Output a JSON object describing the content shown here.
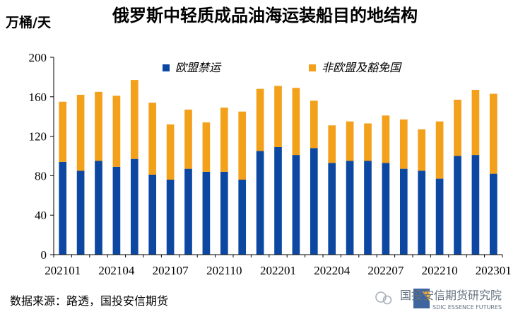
{
  "chart_data": {
    "type": "bar",
    "stacked": true,
    "title": "俄罗斯中轻质成品油海运装船目的地结构",
    "ylabel": "万桶/天",
    "ylim": [
      0,
      200
    ],
    "yticks": [
      0,
      40,
      80,
      120,
      160,
      200
    ],
    "categories": [
      "202101",
      "202102",
      "202103",
      "202104",
      "202105",
      "202106",
      "202107",
      "202108",
      "202109",
      "202110",
      "202111",
      "202112",
      "202201",
      "202202",
      "202203",
      "202204",
      "202205",
      "202206",
      "202207",
      "202208",
      "202209",
      "202210",
      "202211",
      "202212",
      "202301"
    ],
    "xtick_labels": [
      "202101",
      "202104",
      "202107",
      "202110",
      "202201",
      "202204",
      "202207",
      "202210",
      "202301"
    ],
    "series": [
      {
        "name": "欧盟禁运",
        "color": "#0c47a1",
        "values": [
          94,
          85,
          95,
          89,
          97,
          81,
          76,
          87,
          84,
          84,
          76,
          105,
          109,
          101,
          108,
          93,
          95,
          95,
          93,
          87,
          85,
          77,
          100,
          101,
          82
        ]
      },
      {
        "name": "非欧盟及豁免国",
        "color": "#f3a01b",
        "values": [
          61,
          77,
          70,
          72,
          80,
          73,
          56,
          60,
          50,
          65,
          69,
          63,
          62,
          68,
          48,
          38,
          40,
          38,
          48,
          50,
          42,
          58,
          57,
          66,
          81
        ]
      }
    ],
    "legend": "top",
    "grid": false
  },
  "source": "数据来源：路透，国投安信期货",
  "watermark": {
    "name": "国投安信期货研究院",
    "english": "SDIC ESSENCE FUTURES"
  },
  "colors": {
    "axis": "#000000",
    "bar_primary": "#0c47a1",
    "bar_secondary": "#f3a01b"
  }
}
